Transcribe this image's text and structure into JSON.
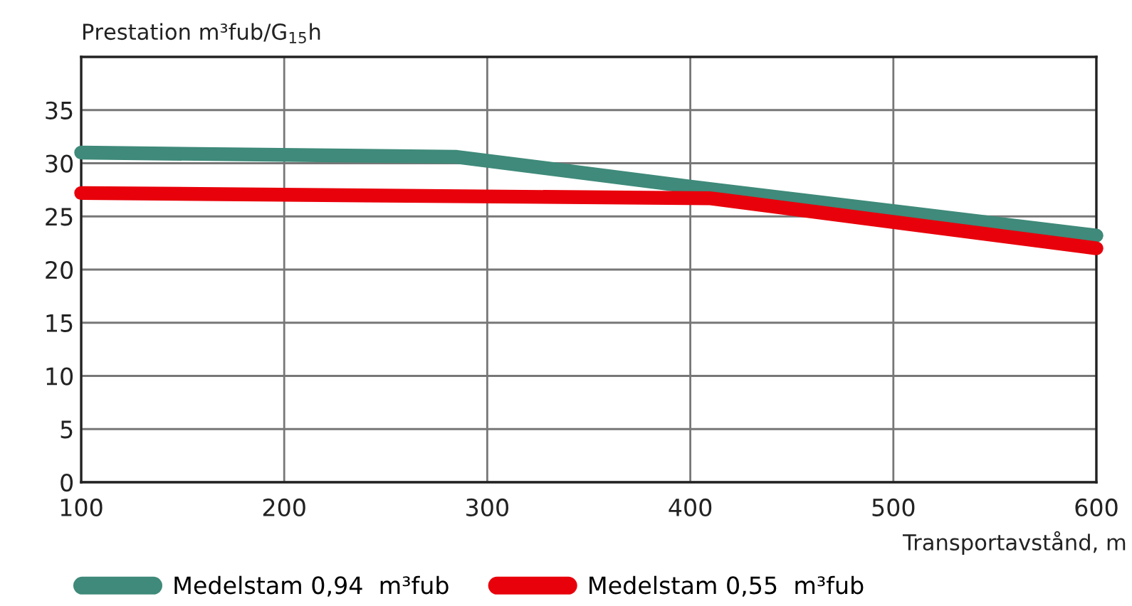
{
  "chart_data": {
    "type": "line",
    "ylabel": "Prestation m³fub/G$_{15}$h",
    "xlabel": "Transportavstånd, m",
    "xlim": [
      100,
      600
    ],
    "xticks": [
      100,
      200,
      300,
      400,
      500,
      600
    ],
    "ylim": [
      0,
      40
    ],
    "yticks": [
      0,
      5,
      10,
      15,
      20,
      25,
      30,
      35
    ],
    "grid": true,
    "legend": "bottom",
    "line_style": "solid",
    "marker": "none",
    "series": [
      {
        "name": "Medelstam 0,94  m³fub",
        "color": "#3f8a7a",
        "x": [
          100,
          285,
          400,
          600
        ],
        "values": [
          31,
          30.6,
          27.8,
          23.2
        ]
      },
      {
        "name": "Medelstam 0,55  m³fub",
        "color": "#e8000b",
        "x": [
          100,
          410,
          600
        ],
        "values": [
          27.2,
          26.7,
          22
        ]
      }
    ]
  }
}
